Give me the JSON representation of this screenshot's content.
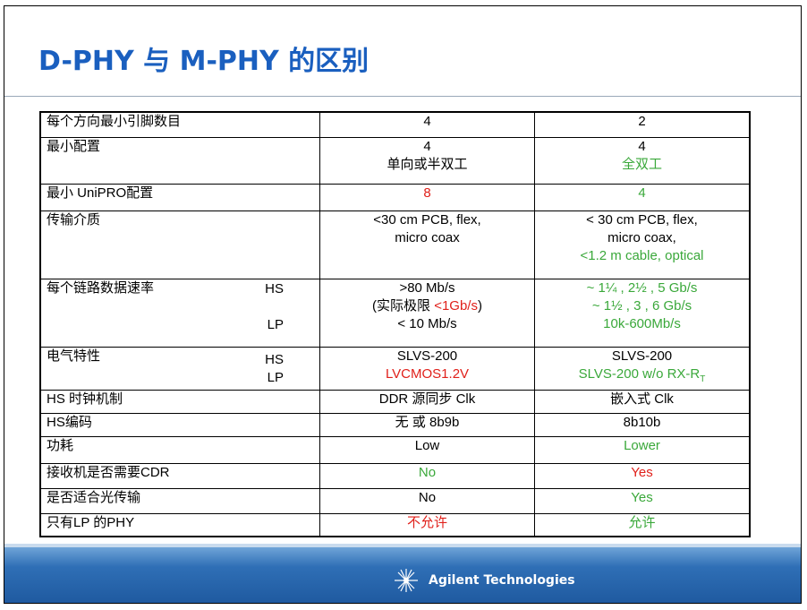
{
  "title": "D-PHY 与 M-PHY 的区别",
  "rows": [
    {
      "label": "每个方向最小引脚数目",
      "sub": [],
      "dphy": [
        {
          "t": "4",
          "c": ""
        }
      ],
      "mphy": [
        {
          "t": "2",
          "c": ""
        }
      ]
    },
    {
      "label": "最小配置",
      "sub": [],
      "dphy": [
        {
          "t": "4",
          "c": ""
        },
        {
          "t": "单向或半双工",
          "c": ""
        }
      ],
      "mphy": [
        {
          "t": "4",
          "c": ""
        },
        {
          "t": "全双工",
          "c": "green"
        }
      ]
    },
    {
      "label": "最小 UniPRO配置",
      "sub": [],
      "dphy": [
        {
          "t": "8",
          "c": "red"
        }
      ],
      "mphy": [
        {
          "t": "4",
          "c": "green"
        }
      ]
    },
    {
      "label": "传输介质",
      "sub": [],
      "dphy": [
        {
          "t": "<30 cm PCB, flex,",
          "c": ""
        },
        {
          "t": "micro coax",
          "c": ""
        }
      ],
      "mphy": [
        {
          "t": "< 30 cm PCB, flex,",
          "c": ""
        },
        {
          "t": "micro coax,",
          "c": ""
        },
        {
          "t": "<1.2 m cable, optical",
          "c": "green"
        }
      ]
    },
    {
      "label": "每个链路数据速率",
      "sub": [
        "HS",
        "",
        "LP"
      ],
      "dphy": [
        {
          "t": ">80 Mb/s",
          "c": ""
        },
        {
          "t": "(实际极限 ",
          "c": "",
          "t2": "<1Gb/s",
          "c2": "red",
          "t3": ")"
        },
        {
          "t": "< 10 Mb/s",
          "c": ""
        }
      ],
      "mphy": [
        {
          "t": "~ 1¼ , 2½ , 5 Gb/s",
          "c": "green"
        },
        {
          "t": "~ 1½ , 3 , 6 Gb/s",
          "c": "green"
        },
        {
          "t": "10k-600Mb/s",
          "c": "green"
        }
      ]
    },
    {
      "label": "电气特性",
      "sub": [
        "HS",
        "LP"
      ],
      "dphy": [
        {
          "t": "SLVS-200",
          "c": ""
        },
        {
          "t": "LVCMOS1.2V",
          "c": "red"
        }
      ],
      "mphy": [
        {
          "t": "SLVS-200",
          "c": ""
        },
        {
          "t": "SLVS-200 w/o RX-R",
          "c": "green",
          "subscript": "T"
        }
      ]
    },
    {
      "label": "HS 时钟机制",
      "sub": [],
      "dphy": [
        {
          "t": "DDR 源同步 Clk",
          "c": ""
        }
      ],
      "mphy": [
        {
          "t": "嵌入式 Clk",
          "c": ""
        }
      ]
    },
    {
      "label": "HS编码",
      "sub": [],
      "dphy": [
        {
          "t": "无 或 8b9b",
          "c": ""
        }
      ],
      "mphy": [
        {
          "t": "8b10b",
          "c": ""
        }
      ]
    },
    {
      "label": "功耗",
      "sub": [],
      "dphy": [
        {
          "t": "Low",
          "c": ""
        }
      ],
      "mphy": [
        {
          "t": "Lower",
          "c": "green"
        }
      ]
    },
    {
      "label": "接收机是否需要CDR",
      "sub": [],
      "dphy": [
        {
          "t": "No",
          "c": "green"
        }
      ],
      "mphy": [
        {
          "t": "Yes",
          "c": "red"
        }
      ]
    },
    {
      "label": "是否适合光传输",
      "sub": [],
      "dphy": [
        {
          "t": "No",
          "c": ""
        }
      ],
      "mphy": [
        {
          "t": "Yes",
          "c": "green"
        }
      ]
    },
    {
      "label": "只有LP 的PHY",
      "sub": [],
      "dphy": [
        {
          "t": "不允许",
          "c": "red"
        }
      ],
      "mphy": [
        {
          "t": "允许",
          "c": "green"
        }
      ]
    }
  ],
  "footer": {
    "logo_text": "Agilent Technologies",
    "logo_icon": "agilent-spark-icon"
  },
  "colors": {
    "title": "#1a5fbf",
    "red": "#e0201a",
    "green": "#3aa83a",
    "footer": "#2f6fb6"
  }
}
